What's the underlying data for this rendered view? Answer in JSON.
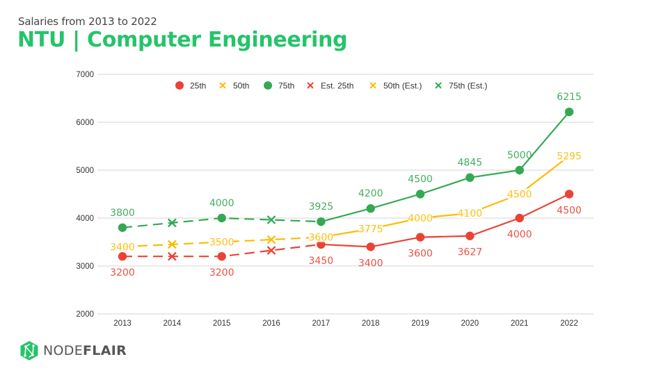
{
  "header": {
    "subtitle": "Salaries from 2013 to 2022",
    "title": "NTU | Computer Engineering"
  },
  "brand": {
    "name_light": "NODE",
    "name_bold": "FLAIR",
    "logo_icon": "nodeflair-hexagon-logo-icon",
    "color": "#25c46a"
  },
  "colors": {
    "p25": "#ea4335",
    "p50": "#fbbc04",
    "p75": "#34a853",
    "grid": "#dddddd",
    "axis_text": "#333333"
  },
  "chart_data": {
    "type": "line",
    "title": "NTU | Computer Engineering",
    "subtitle": "Salaries from 2013 to 2022",
    "xlabel": "",
    "ylabel": "",
    "x": [
      "2013",
      "2014",
      "2015",
      "2016",
      "2017",
      "2018",
      "2019",
      "2020",
      "2021",
      "2022"
    ],
    "ylim": [
      2000,
      7000
    ],
    "yticks": [
      2000,
      3000,
      4000,
      5000,
      6000,
      7000
    ],
    "grid": "horizontal",
    "legend_position": "top",
    "legend": [
      "25th",
      "50th",
      "75th",
      "Est. 25th",
      "50th (Est.)",
      "75th (Est.)"
    ],
    "series": [
      {
        "name": "25th",
        "key": "p25",
        "marker": "circle",
        "values": [
          3200,
          null,
          3200,
          null,
          3450,
          3400,
          3600,
          3627,
          4000,
          4500
        ],
        "labels": [
          "3200",
          null,
          "3200",
          null,
          "3450",
          "3400",
          "3600",
          "3627",
          "4000",
          "4500"
        ],
        "label_position": "below"
      },
      {
        "name": "50th",
        "key": "p50",
        "marker": "none",
        "values": [
          3400,
          null,
          3500,
          null,
          3600,
          3775,
          4000,
          4100,
          4500,
          5295
        ],
        "labels": [
          "3400",
          null,
          "3500",
          null,
          "3600",
          "3775",
          "4000",
          "4100",
          "4500",
          "5295"
        ],
        "label_position": "center"
      },
      {
        "name": "75th",
        "key": "p75",
        "marker": "circle",
        "values": [
          3800,
          null,
          4000,
          null,
          3925,
          4200,
          4500,
          4845,
          5000,
          6215
        ],
        "labels": [
          "3800",
          null,
          "4000",
          null,
          "3925",
          "4200",
          "4500",
          "4845",
          "5000",
          "6215"
        ],
        "label_position": "above"
      },
      {
        "name": "Est. 25th",
        "key": "p25",
        "marker": "x",
        "values": [
          null,
          3200,
          null,
          3325,
          null,
          null,
          null,
          null,
          null,
          null
        ]
      },
      {
        "name": "50th (Est.)",
        "key": "p50",
        "marker": "x",
        "values": [
          null,
          3450,
          null,
          3550,
          null,
          null,
          null,
          null,
          null,
          null
        ]
      },
      {
        "name": "75th (Est.)",
        "key": "p75",
        "marker": "x",
        "values": [
          null,
          3900,
          null,
          3963,
          null,
          null,
          null,
          null,
          null,
          null
        ]
      }
    ],
    "line_style": {
      "dashed_range": [
        "2013",
        "2017"
      ],
      "solid_range": [
        "2017",
        "2022"
      ]
    }
  }
}
